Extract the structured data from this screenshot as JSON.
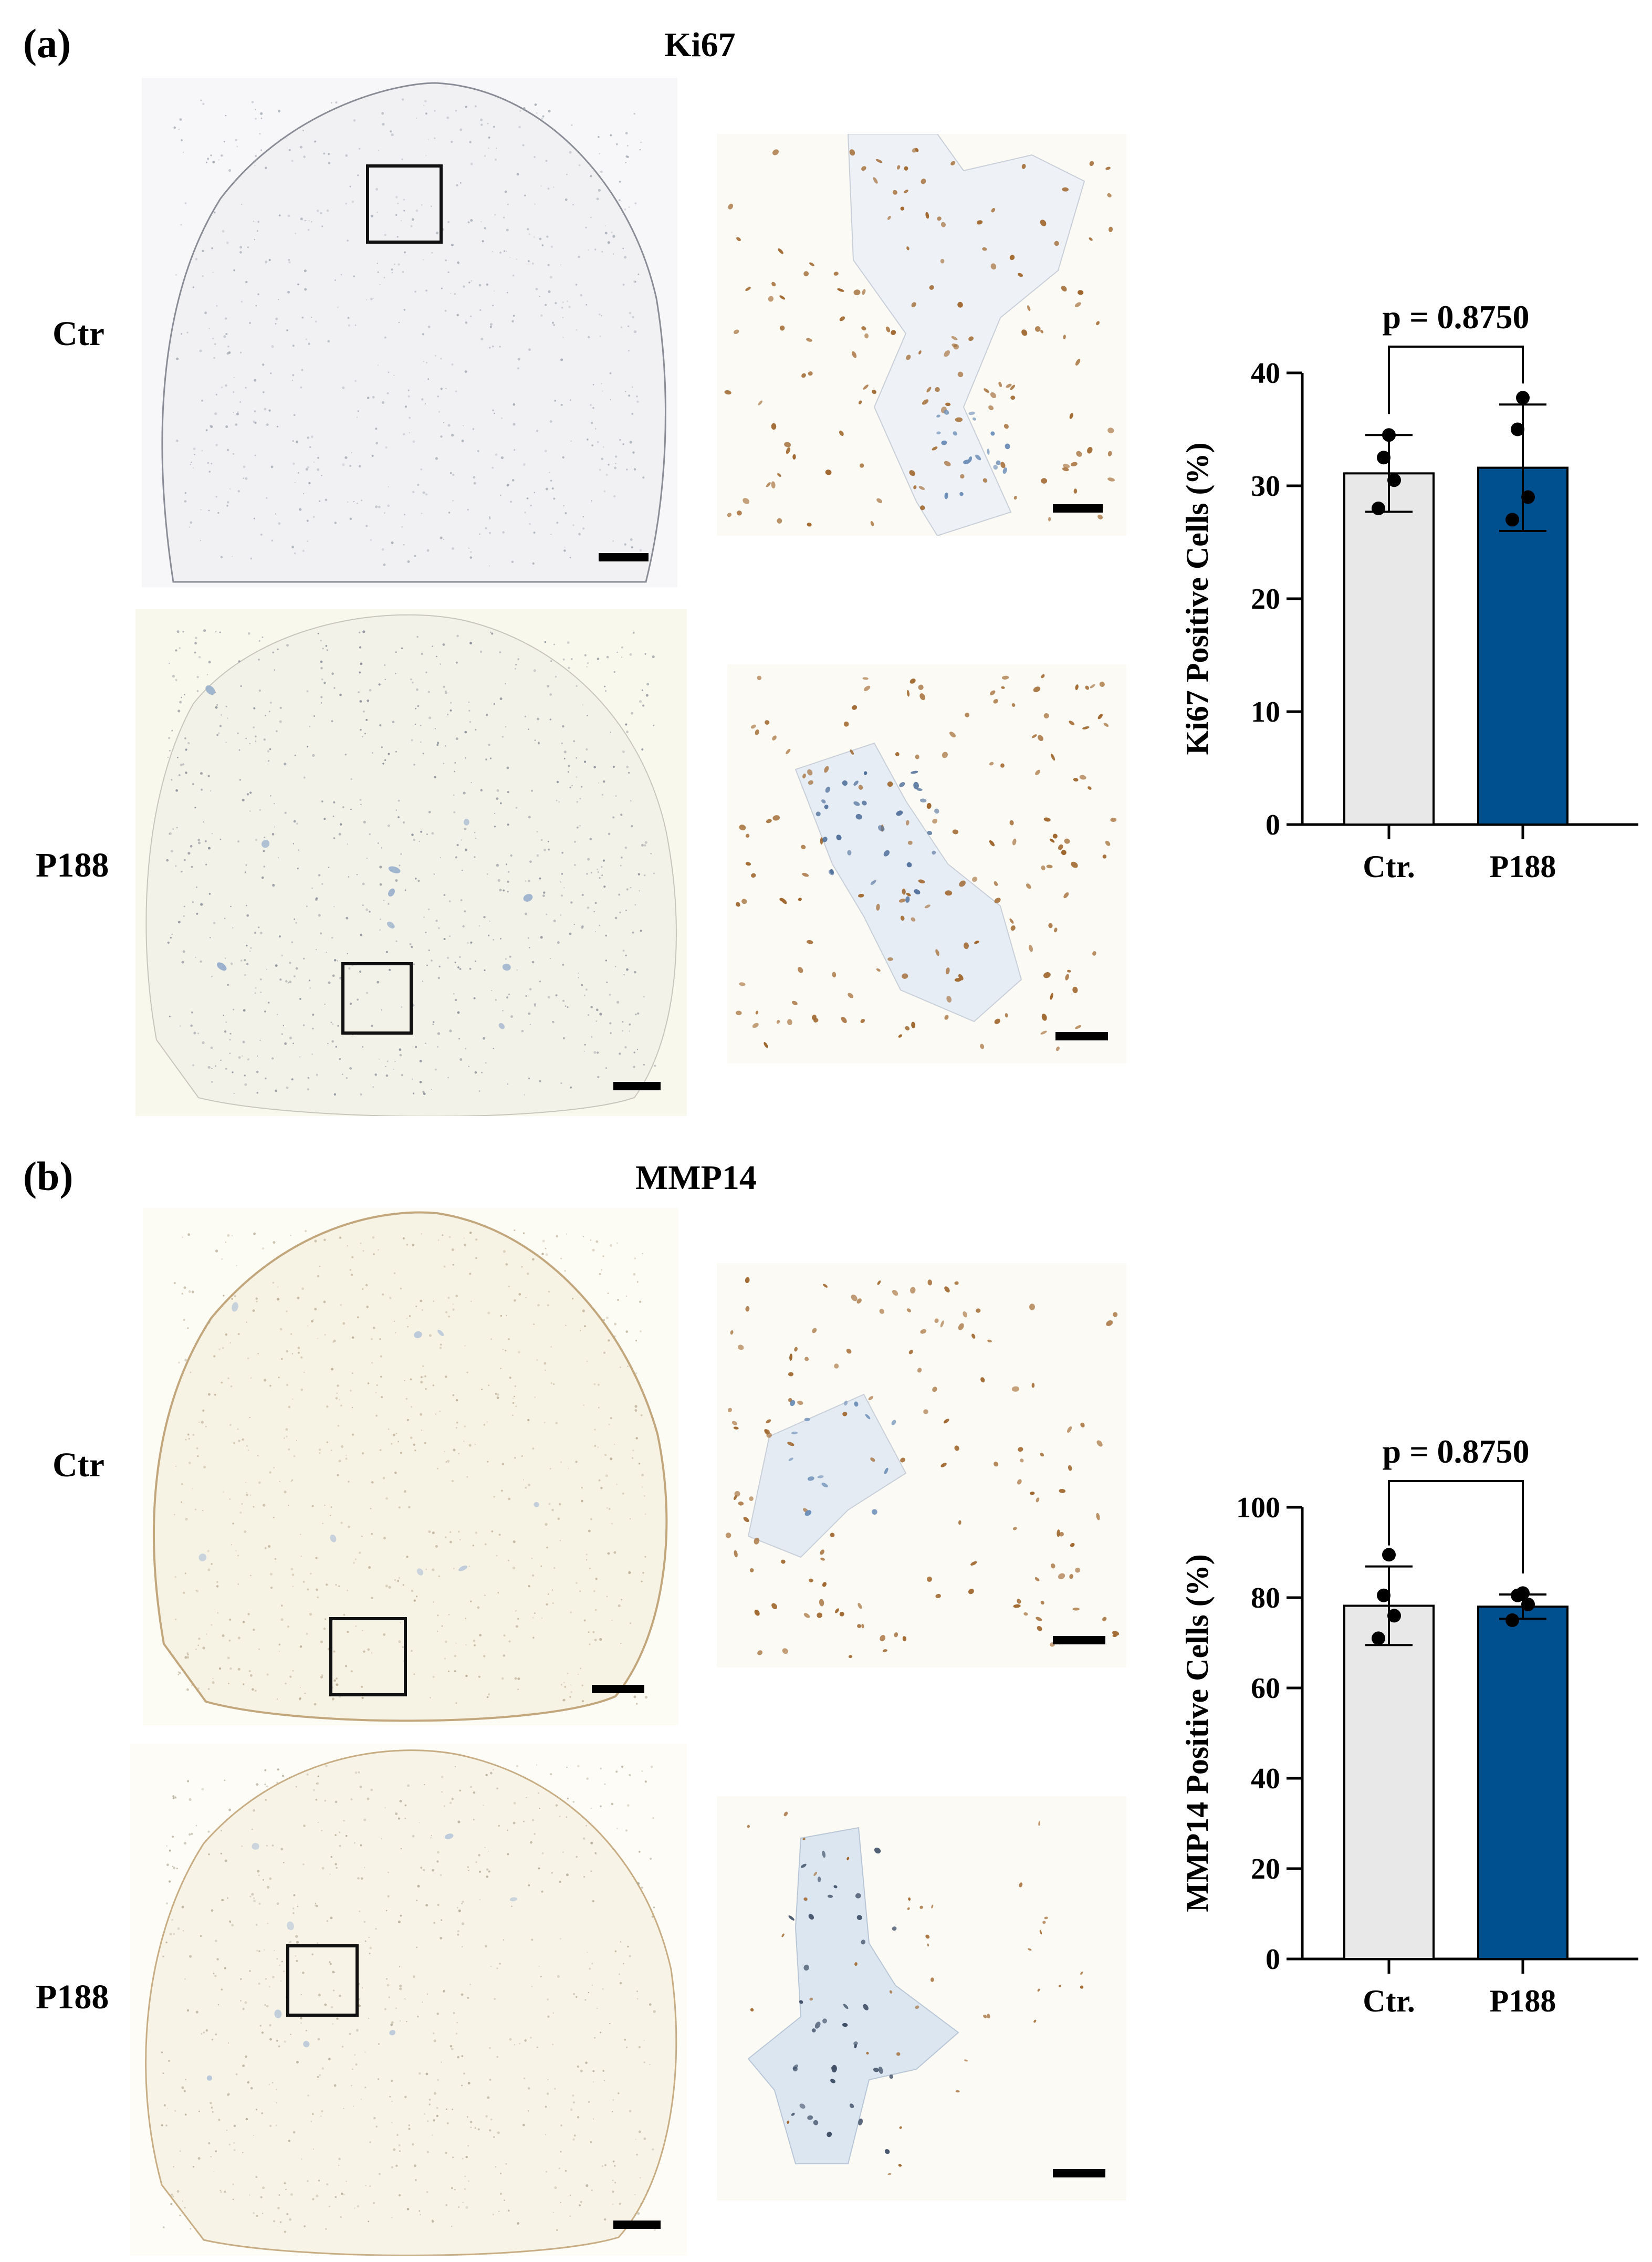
{
  "panel_a": {
    "letter": "(a)",
    "title": "Ki67",
    "row_labels": [
      "Ctr",
      "P188"
    ]
  },
  "panel_b": {
    "letter": "(b)",
    "title": "MMP14",
    "row_labels": [
      "Ctr",
      "P188"
    ]
  },
  "colors": {
    "ctr_bar": "#e8e8e8",
    "p188_bar": "#004f8f",
    "dab_brown": "#a0672e",
    "hematoxylin_blue": "#6d8fb8",
    "tissue_bg": "#fbf9ef"
  },
  "chart_data": [
    {
      "type": "bar",
      "categories": [
        "Ctr.",
        "P188"
      ],
      "values": [
        31.1,
        31.6
      ],
      "sd": [
        3.4,
        5.6
      ],
      "points": [
        [
          34.5,
          32.5,
          30.5,
          28.0
        ],
        [
          37.8,
          35.0,
          29.0,
          27.0
        ]
      ],
      "ylabel": "Ki67 Positive Cells (%)",
      "ylim": [
        0,
        40
      ],
      "yticks": [
        0,
        10,
        20,
        30,
        40
      ],
      "annotation": "p = 0.8750",
      "bar_colors": [
        "#e8e8e8",
        "#004f8f"
      ]
    },
    {
      "type": "bar",
      "categories": [
        "Ctr.",
        "P188"
      ],
      "values": [
        78.2,
        78.0
      ],
      "sd": [
        8.7,
        2.7
      ],
      "points": [
        [
          89.5,
          80.5,
          76.0,
          71.0
        ],
        [
          81.0,
          80.5,
          78.5,
          75.0
        ]
      ],
      "ylabel": "MMP14 Positive Cells (%)",
      "ylim": [
        0,
        100
      ],
      "yticks": [
        0,
        20,
        40,
        60,
        80,
        100
      ],
      "annotation": "p = 0.8750",
      "bar_colors": [
        "#e8e8e8",
        "#004f8f"
      ]
    }
  ]
}
